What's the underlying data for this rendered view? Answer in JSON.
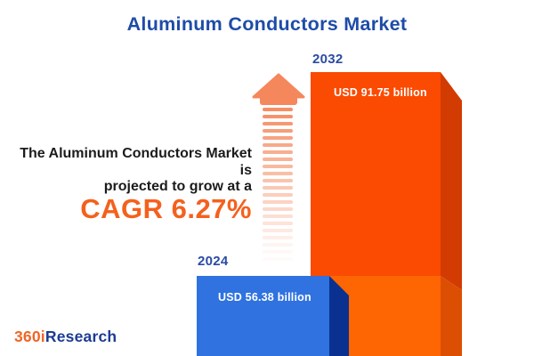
{
  "title": "Aluminum Conductors Market",
  "headline": {
    "line1": "The Aluminum Conductors Market is",
    "line2": "projected to grow at a",
    "cagr": "CAGR 6.27%"
  },
  "logo": {
    "prefix": "360i",
    "suffix": "Research"
  },
  "colors": {
    "title_blue": "#1E4CA8",
    "year_label_blue": "#2A4BA5",
    "headline_text": "#1B1B1B",
    "cagr_orange": "#F4611D",
    "arrow_orange": "#F5875C",
    "logo_orange": "#F26524",
    "logo_blue": "#1C3C94",
    "background": "#FFFFFF"
  },
  "chart_data": {
    "type": "bar",
    "title": "Aluminum Conductors Market",
    "categories": [
      "2024",
      "2032"
    ],
    "values": [
      56.38,
      91.75
    ],
    "value_unit": "USD billion",
    "cagr_percent": 6.27,
    "legend": "none",
    "axes": "none",
    "bars": [
      {
        "year": "2024",
        "value": 56.38,
        "label": "USD 56.38 billion",
        "front_color": "#2F72E0",
        "side_color": "#0A3190"
      },
      {
        "year": "2032",
        "value": 91.75,
        "label": "USD 91.75 billion",
        "front_color": "#FB4A01",
        "side_color": "#D23B02",
        "overlap_front_color": "#FE6503",
        "overlap_side_color": "#DC4E02"
      }
    ]
  }
}
